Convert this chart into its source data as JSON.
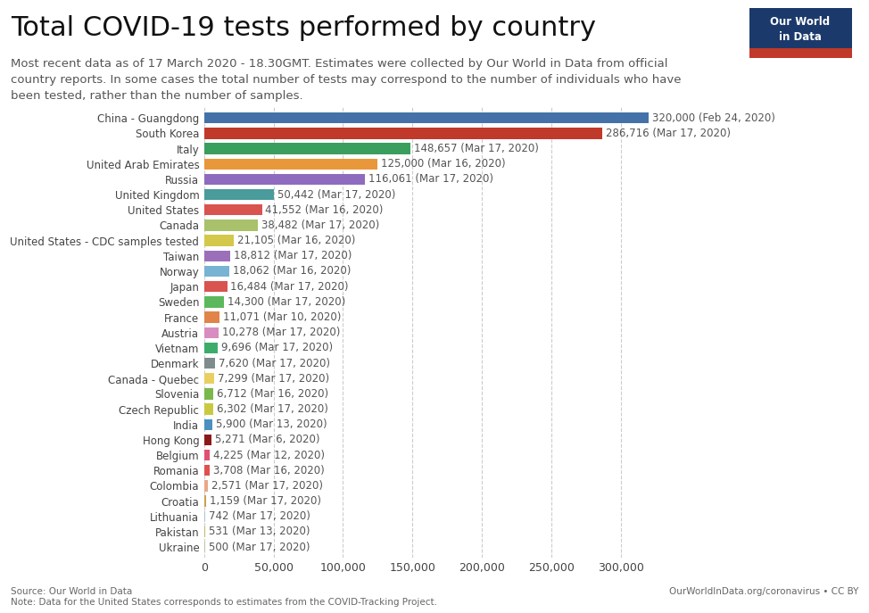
{
  "title": "Total COVID-19 tests performed by country",
  "subtitle": "Most recent data as of 17 March 2020 - 18.30GMT. Estimates were collected by Our World in Data from official\ncountry reports. In some cases the total number of tests may correspond to the number of individuals who have\nbeen tested, rather than the number of samples.",
  "source_left": "Source: Our World in Data",
  "source_right": "OurWorldInData.org/coronavirus • CC BY",
  "note": "Note: Data for the United States corresponds to estimates from the COVID-Tracking Project.",
  "logo_text1": "Our World",
  "logo_text2": "in Data",
  "countries": [
    "China - Guangdong",
    "South Korea",
    "Italy",
    "United Arab Emirates",
    "Russia",
    "United Kingdom",
    "United States",
    "Canada",
    "United States - CDC samples tested",
    "Taiwan",
    "Norway",
    "Japan",
    "Sweden",
    "France",
    "Austria",
    "Vietnam",
    "Denmark",
    "Canada - Quebec",
    "Slovenia",
    "Czech Republic",
    "India",
    "Hong Kong",
    "Belgium",
    "Romania",
    "Colombia",
    "Croatia",
    "Lithuania",
    "Pakistan",
    "Ukraine"
  ],
  "values": [
    320000,
    286716,
    148657,
    125000,
    116061,
    50442,
    41552,
    38482,
    21105,
    18812,
    18062,
    16484,
    14300,
    11071,
    10278,
    9696,
    7620,
    7299,
    6712,
    6302,
    5900,
    5271,
    4225,
    3708,
    2571,
    1159,
    742,
    531,
    500
  ],
  "labels": [
    "320,000 (Feb 24, 2020)",
    "286,716 (Mar 17, 2020)",
    "148,657 (Mar 17, 2020)",
    "125,000 (Mar 16, 2020)",
    "116,061 (Mar 17, 2020)",
    "50,442 (Mar 17, 2020)",
    "41,552 (Mar 16, 2020)",
    "38,482 (Mar 17, 2020)",
    "21,105 (Mar 16, 2020)",
    "18,812 (Mar 17, 2020)",
    "18,062 (Mar 16, 2020)",
    "16,484 (Mar 17, 2020)",
    "14,300 (Mar 17, 2020)",
    "11,071 (Mar 10, 2020)",
    "10,278 (Mar 17, 2020)",
    "9,696 (Mar 17, 2020)",
    "7,620 (Mar 17, 2020)",
    "7,299 (Mar 17, 2020)",
    "6,712 (Mar 16, 2020)",
    "6,302 (Mar 17, 2020)",
    "5,900 (Mar 13, 2020)",
    "5,271 (Mar 6, 2020)",
    "4,225 (Mar 12, 2020)",
    "3,708 (Mar 16, 2020)",
    "2,571 (Mar 17, 2020)",
    "1,159 (Mar 17, 2020)",
    "742 (Mar 17, 2020)",
    "531 (Mar 13, 2020)",
    "500 (Mar 17, 2020)"
  ],
  "colors": [
    "#4472a8",
    "#c0392b",
    "#3a9e5f",
    "#e8973a",
    "#8e6bbf",
    "#4a9b9b",
    "#d9534f",
    "#a8c16a",
    "#d4c84a",
    "#9b6fba",
    "#78b3d4",
    "#d9534f",
    "#5cb85c",
    "#e0844a",
    "#d98cbf",
    "#3dac6b",
    "#7f8c8d",
    "#e8d060",
    "#7ab84c",
    "#c9c940",
    "#4a90c0",
    "#8b1a1a",
    "#e05070",
    "#e05050",
    "#e8a888",
    "#c8a050",
    "#a8c8d8",
    "#c8b870",
    "#b8c8a0"
  ],
  "background_color": "#ffffff",
  "grid_color": "#cccccc",
  "title_fontsize": 22,
  "subtitle_fontsize": 9.5,
  "label_fontsize": 8.5,
  "tick_fontsize": 9,
  "logo_bg": "#1b3a6b",
  "logo_red": "#c0392b"
}
